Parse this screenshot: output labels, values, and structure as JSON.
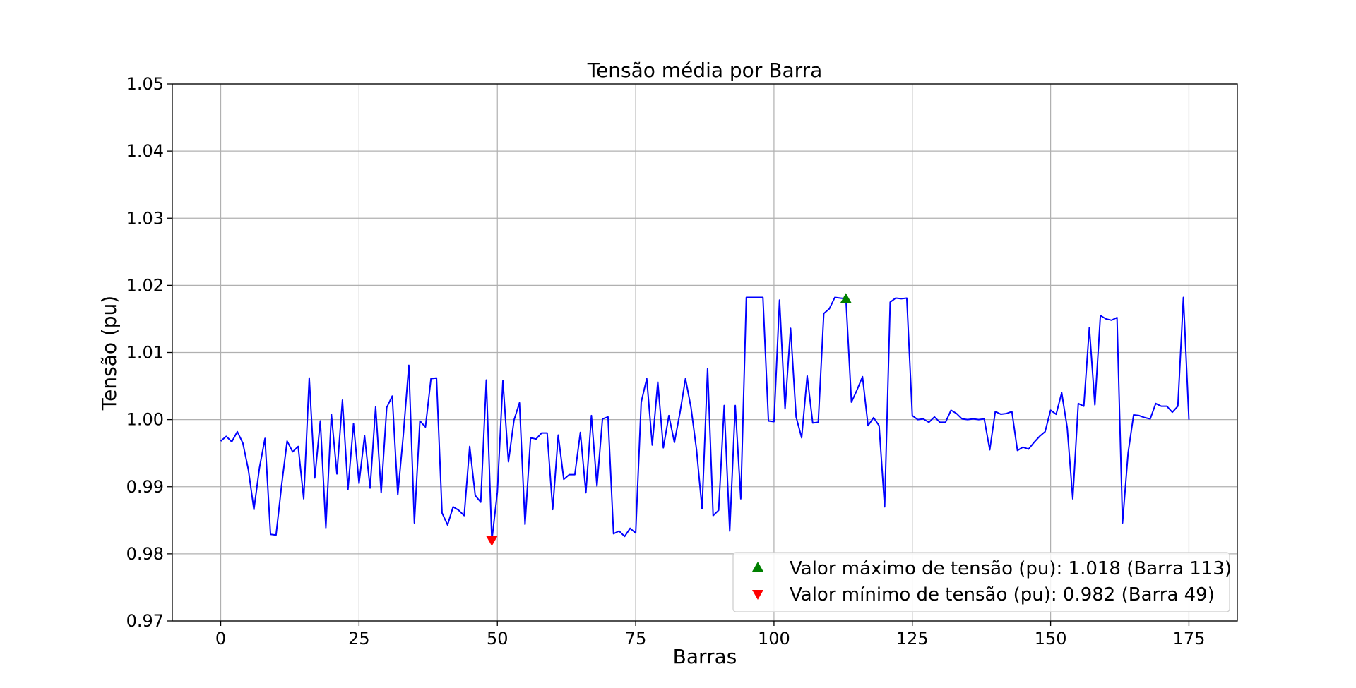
{
  "chart_data": {
    "type": "line",
    "title": "Tensão média por Barra",
    "xlabel": "Barras",
    "ylabel": "Tensão (pu)",
    "xlim": [
      -8.75,
      183.75
    ],
    "ylim": [
      0.97,
      1.05
    ],
    "x_ticks": [
      0,
      25,
      50,
      75,
      100,
      125,
      150,
      175
    ],
    "x_tick_labels": [
      "0",
      "25",
      "50",
      "75",
      "100",
      "125",
      "150",
      "175"
    ],
    "y_ticks": [
      0.97,
      0.98,
      0.99,
      1.0,
      1.01,
      1.02,
      1.03,
      1.04,
      1.05
    ],
    "y_tick_labels": [
      "0.97",
      "0.98",
      "0.99",
      "1.00",
      "1.01",
      "1.02",
      "1.03",
      "1.04",
      "1.05"
    ],
    "grid": true,
    "legend_position": "lower-right",
    "series": [
      {
        "color": "#0000ff",
        "x_start": 0,
        "values": [
          0.9968,
          0.9975,
          0.9967,
          0.9982,
          0.9965,
          0.9925,
          0.9866,
          0.9928,
          0.9972,
          0.9829,
          0.9828,
          0.9902,
          0.9968,
          0.9952,
          0.996,
          0.9882,
          1.0062,
          0.9913,
          0.9998,
          0.9839,
          1.0008,
          0.9919,
          1.0029,
          0.9896,
          0.9994,
          0.9905,
          0.9976,
          0.9898,
          1.0019,
          0.9891,
          1.0018,
          1.0035,
          0.9888,
          0.9977,
          1.0081,
          0.9846,
          0.9998,
          0.9989,
          1.0061,
          1.0062,
          0.9861,
          0.9843,
          0.987,
          0.9865,
          0.9857,
          0.996,
          0.9887,
          0.9877,
          1.0059,
          0.982,
          0.9892,
          1.0058,
          0.9937,
          0.9999,
          1.0025,
          0.9844,
          0.9973,
          0.9971,
          0.998,
          0.998,
          0.9866,
          0.9977,
          0.9911,
          0.9918,
          0.9918,
          0.9981,
          0.9891,
          1.0006,
          0.9901,
          1.0001,
          1.0004,
          0.983,
          0.9834,
          0.9826,
          0.9838,
          0.9831,
          1.0026,
          1.0061,
          0.9962,
          1.0056,
          0.9958,
          1.0006,
          0.9966,
          1.001,
          1.0061,
          1.0018,
          0.9955,
          0.9867,
          1.0076,
          0.9857,
          0.9865,
          1.0021,
          0.9834,
          1.0021,
          0.9882,
          1.0182,
          1.0182,
          1.0182,
          1.0182,
          0.9998,
          0.9997,
          1.0178,
          1.0016,
          1.0136,
          1.0004,
          0.9973,
          1.0065,
          0.9995,
          0.9996,
          1.0158,
          1.0165,
          1.0182,
          1.0181,
          1.018,
          1.0026,
          1.0044,
          1.0064,
          0.9991,
          1.0003,
          0.9991,
          0.987,
          1.0175,
          1.0181,
          1.018,
          1.0181,
          1.0006,
          1.0,
          1.0001,
          0.9996,
          1.0004,
          0.9996,
          0.9996,
          1.0014,
          1.0009,
          1.0001,
          1.0,
          1.0001,
          1.0,
          1.0001,
          0.9955,
          1.0012,
          1.0008,
          1.0009,
          1.0012,
          0.9954,
          0.9959,
          0.9956,
          0.9966,
          0.9975,
          0.9982,
          1.0014,
          1.0008,
          1.004,
          0.9988,
          0.9882,
          1.0024,
          1.002,
          1.0137,
          1.0022,
          1.0155,
          1.015,
          1.0148,
          1.0152,
          0.9846,
          0.995,
          1.0007,
          1.0006,
          1.0003,
          1.0001,
          1.0024,
          1.002,
          1.002,
          1.0011,
          1.002,
          1.0182,
          1.0
        ]
      }
    ],
    "markers": [
      {
        "name": "max",
        "shape": "triangle-up",
        "color": "#008000",
        "x": 113,
        "y": 1.018,
        "legend_label": "Valor máximo de tensão (pu): 1.018 (Barra 113)"
      },
      {
        "name": "min",
        "shape": "triangle-down",
        "color": "#ff0000",
        "x": 49,
        "y": 0.982,
        "legend_label": "Valor mínimo de tensão (pu): 0.982 (Barra 49)"
      }
    ]
  }
}
